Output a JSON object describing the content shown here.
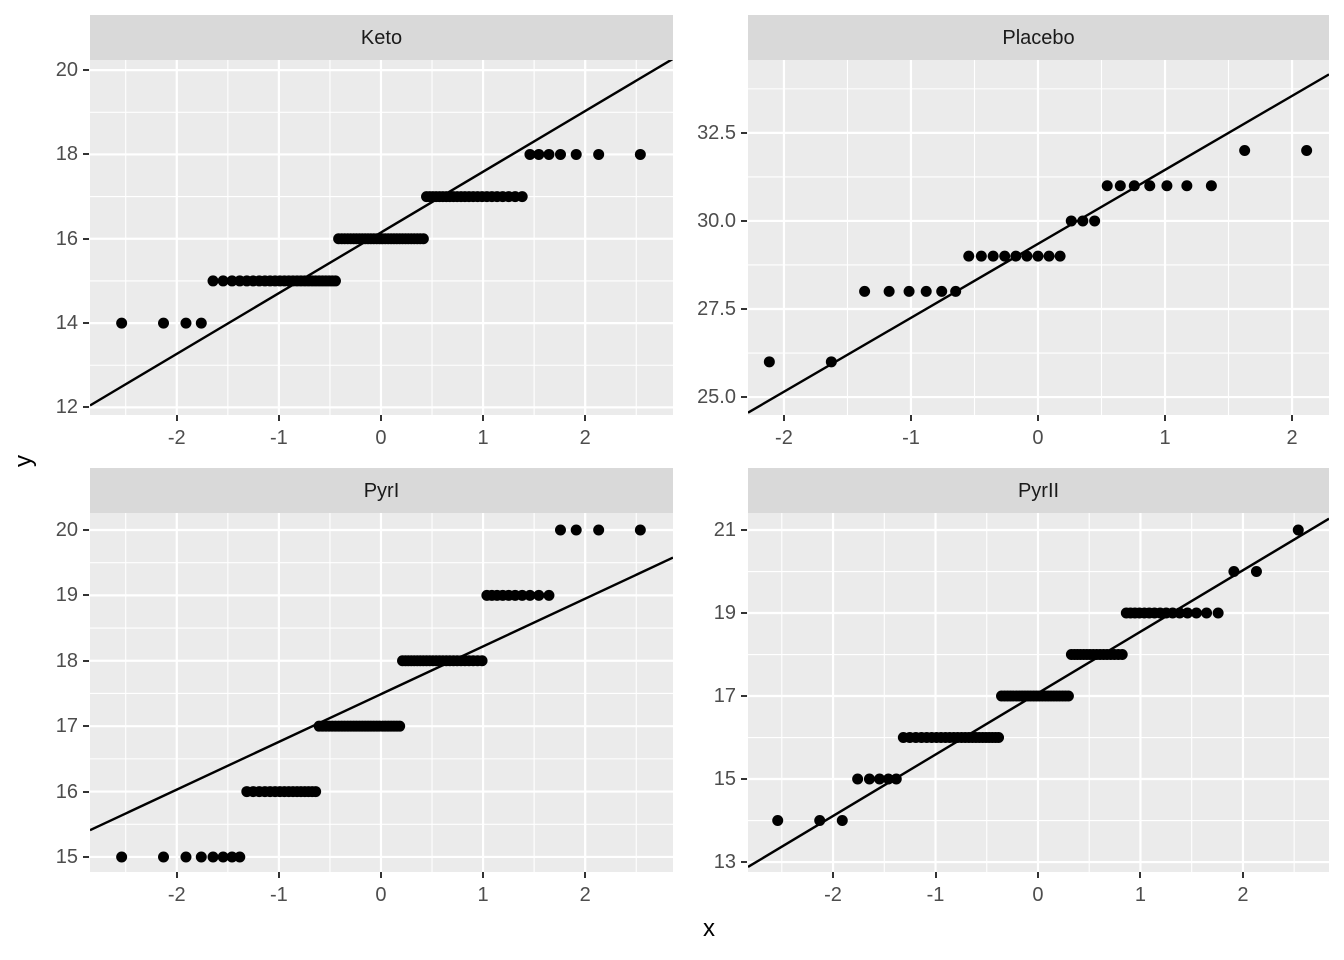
{
  "chart_data": {
    "type": "scatter",
    "subtype": "faceted-qq-plot",
    "title": "",
    "xlabel": "x",
    "ylabel": "y",
    "grid": true,
    "legend": "none",
    "colors": {
      "panel_background": "#EBEBEB",
      "strip_background": "#D9D9D9",
      "gridline": "#FFFFFF",
      "point": "#000000",
      "line": "#000000",
      "tick_label": "#4D4D4D",
      "strip_text": "#1A1A1A",
      "axis_title": "#000000",
      "figure_background": "#FFFFFF"
    },
    "facets": [
      {
        "label": "Keto",
        "x_ticks": [
          -2,
          -1,
          0,
          1,
          2
        ],
        "x_tick_labels": [
          "-2",
          "-1",
          "0",
          "1",
          "2"
        ],
        "y_ticks": [
          12,
          14,
          16,
          18,
          20
        ],
        "y_tick_labels": [
          "12",
          "14",
          "16",
          "18",
          "20"
        ],
        "x_range": [
          -2.85,
          2.86
        ],
        "y_range": [
          11.82,
          20.24
        ],
        "line": {
          "slope": 1.44,
          "intercept": 16.15
        },
        "groups": [
          {
            "y": 14,
            "x": [
              -2.54,
              -2.13,
              -1.91,
              -1.76
            ]
          },
          {
            "y": 15,
            "x": [
              -1.645,
              -1.546,
              -1.459,
              -1.383,
              -1.314,
              -1.251,
              -1.192,
              -1.137,
              -1.086,
              -1.037,
              -0.99,
              -0.946,
              -0.903,
              -0.862,
              -0.822,
              -0.784,
              -0.746,
              -0.71,
              -0.674,
              -0.64,
              -0.606,
              -0.573,
              -0.54,
              -0.508,
              -0.477,
              -0.446
            ]
          },
          {
            "y": 16,
            "x": [
              -0.415,
              -0.385,
              -0.356,
              -0.326,
              -0.297,
              -0.268,
              -0.24,
              -0.211,
              -0.183,
              -0.155,
              -0.127,
              -0.099,
              -0.071,
              -0.042,
              -0.014,
              0.014,
              0.042,
              0.071,
              0.099,
              0.127,
              0.155,
              0.183,
              0.211,
              0.24,
              0.268,
              0.297,
              0.326,
              0.356,
              0.385,
              0.415
            ]
          },
          {
            "y": 17,
            "x": [
              0.446,
              0.477,
              0.508,
              0.54,
              0.573,
              0.606,
              0.64,
              0.674,
              0.71,
              0.746,
              0.784,
              0.822,
              0.862,
              0.903,
              0.946,
              0.99,
              1.037,
              1.086,
              1.137,
              1.192,
              1.251,
              1.314,
              1.383
            ]
          },
          {
            "y": 18,
            "x": [
              1.459,
              1.546,
              1.645,
              1.758,
              1.912,
              2.132,
              2.54
            ]
          }
        ]
      },
      {
        "label": "Placebo",
        "x_ticks": [
          -2,
          -1,
          0,
          1,
          2
        ],
        "x_tick_labels": [
          "-2",
          "-1",
          "0",
          "1",
          "2"
        ],
        "y_ticks": [
          25.0,
          27.5,
          30.0,
          32.5
        ],
        "y_tick_labels": [
          "25.0",
          "27.5",
          "30.0",
          "32.5"
        ],
        "x_range": [
          -2.283,
          2.291
        ],
        "y_range": [
          24.49,
          34.57
        ],
        "line": {
          "slope": 2.1,
          "intercept": 29.35
        },
        "groups": [
          {
            "y": 26,
            "x": [
              -2.115,
              -1.627
            ]
          },
          {
            "y": 28,
            "x": [
              -1.365,
              -1.172,
              -1.015,
              -0.88,
              -0.758,
              -0.648
            ]
          },
          {
            "y": 29,
            "x": [
              -0.545,
              -0.446,
              -0.353,
              -0.262,
              -0.174,
              -0.087,
              0.0,
              0.087,
              0.174
            ]
          },
          {
            "y": 30,
            "x": [
              0.262,
              0.353,
              0.446
            ]
          },
          {
            "y": 31,
            "x": [
              0.545,
              0.648,
              0.758,
              0.88,
              1.015,
              1.172,
              1.365
            ]
          },
          {
            "y": 32,
            "x": [
              1.627,
              2.115
            ]
          }
        ]
      },
      {
        "label": "PyrI",
        "x_ticks": [
          -2,
          -1,
          0,
          1,
          2
        ],
        "x_tick_labels": [
          "-2",
          "-1",
          "0",
          "1",
          "2"
        ],
        "y_ticks": [
          15,
          16,
          17,
          18,
          19,
          20
        ],
        "y_tick_labels": [
          "15",
          "16",
          "17",
          "18",
          "19",
          "20"
        ],
        "x_range": [
          -2.85,
          2.86
        ],
        "y_range": [
          14.77,
          20.26
        ],
        "line": {
          "slope": 0.73,
          "intercept": 17.49
        },
        "groups": [
          {
            "y": 15,
            "x": [
              -2.54,
              -2.13,
              -1.91,
              -1.76,
              -1.645,
              -1.546,
              -1.459,
              -1.383
            ]
          },
          {
            "y": 16,
            "x": [
              -1.314,
              -1.251,
              -1.192,
              -1.137,
              -1.086,
              -1.037,
              -0.99,
              -0.946,
              -0.903,
              -0.862,
              -0.822,
              -0.784,
              -0.746,
              -0.71,
              -0.674,
              -0.64
            ]
          },
          {
            "y": 17,
            "x": [
              -0.606,
              -0.573,
              -0.54,
              -0.508,
              -0.477,
              -0.446,
              -0.415,
              -0.385,
              -0.356,
              -0.326,
              -0.297,
              -0.268,
              -0.24,
              -0.211,
              -0.183,
              -0.155,
              -0.127,
              -0.099,
              -0.071,
              -0.042,
              -0.014,
              0.014,
              0.042,
              0.071,
              0.099,
              0.127,
              0.155,
              0.183
            ]
          },
          {
            "y": 18,
            "x": [
              0.211,
              0.24,
              0.268,
              0.297,
              0.326,
              0.356,
              0.385,
              0.415,
              0.446,
              0.477,
              0.508,
              0.54,
              0.573,
              0.606,
              0.64,
              0.674,
              0.71,
              0.746,
              0.784,
              0.822,
              0.862,
              0.903,
              0.946,
              0.99
            ]
          },
          {
            "y": 19,
            "x": [
              1.037,
              1.086,
              1.137,
              1.192,
              1.251,
              1.314,
              1.383,
              1.459,
              1.546,
              1.645
            ]
          },
          {
            "y": 20,
            "x": [
              1.758,
              1.912,
              2.132,
              2.54
            ]
          }
        ]
      },
      {
        "label": "PyrII",
        "x_ticks": [
          -2,
          -1,
          0,
          1,
          2
        ],
        "x_tick_labels": [
          "-2",
          "-1",
          "0",
          "1",
          "2"
        ],
        "y_ticks": [
          13,
          15,
          17,
          19,
          21
        ],
        "y_tick_labels": [
          "13",
          "15",
          "17",
          "19",
          "21"
        ],
        "x_range": [
          -2.83,
          2.84
        ],
        "y_range": [
          12.76,
          21.41
        ],
        "line": {
          "slope": 1.48,
          "intercept": 17.07
        },
        "groups": [
          {
            "y": 14,
            "x": [
              -2.54,
              -2.13,
              -1.91
            ]
          },
          {
            "y": 15,
            "x": [
              -1.76,
              -1.645,
              -1.546,
              -1.459,
              -1.383
            ]
          },
          {
            "y": 16,
            "x": [
              -1.314,
              -1.251,
              -1.192,
              -1.137,
              -1.086,
              -1.037,
              -0.99,
              -0.946,
              -0.903,
              -0.862,
              -0.822,
              -0.784,
              -0.746,
              -0.71,
              -0.674,
              -0.64,
              -0.606,
              -0.573,
              -0.54,
              -0.508,
              -0.477,
              -0.446,
              -0.415,
              -0.385
            ]
          },
          {
            "y": 17,
            "x": [
              -0.356,
              -0.326,
              -0.297,
              -0.268,
              -0.24,
              -0.211,
              -0.183,
              -0.155,
              -0.127,
              -0.099,
              -0.071,
              -0.042,
              -0.014,
              0.014,
              0.042,
              0.071,
              0.099,
              0.127,
              0.155,
              0.183,
              0.211,
              0.24,
              0.268,
              0.297
            ]
          },
          {
            "y": 18,
            "x": [
              0.326,
              0.356,
              0.385,
              0.415,
              0.446,
              0.477,
              0.508,
              0.54,
              0.573,
              0.606,
              0.64,
              0.674,
              0.71,
              0.746,
              0.784,
              0.822
            ]
          },
          {
            "y": 19,
            "x": [
              0.862,
              0.903,
              0.946,
              0.99,
              1.037,
              1.086,
              1.137,
              1.192,
              1.251,
              1.314,
              1.383,
              1.459,
              1.546,
              1.645,
              1.758
            ]
          },
          {
            "y": 20,
            "x": [
              1.912,
              2.132
            ]
          },
          {
            "y": 21,
            "x": [
              2.54
            ]
          }
        ]
      }
    ]
  }
}
